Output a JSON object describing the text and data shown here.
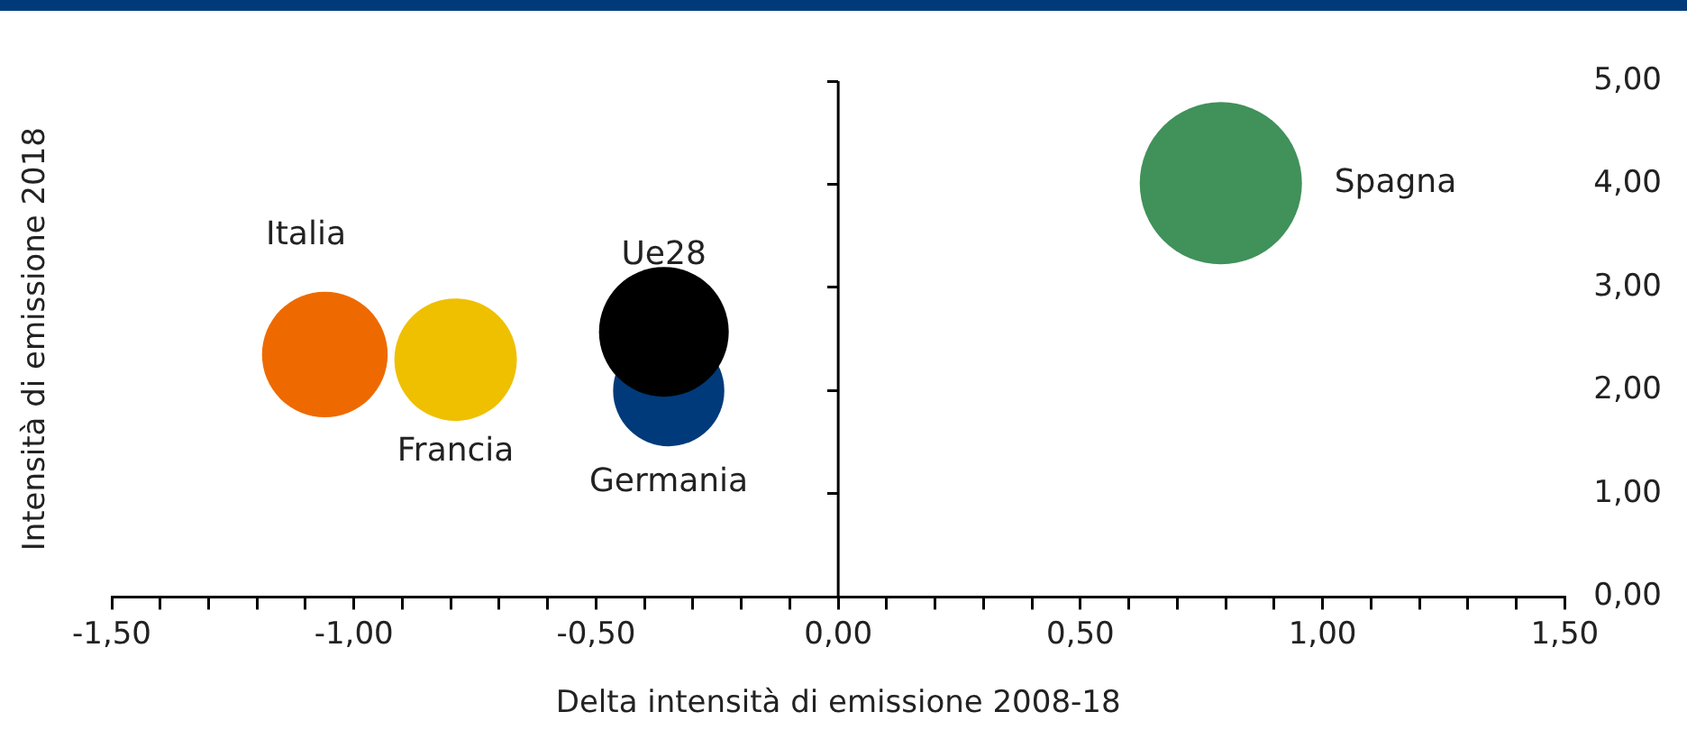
{
  "chart_data": {
    "type": "bubble",
    "xlabel": "Delta intensità di emissione 2008-18",
    "ylabel": "Intensità di emissione 2018",
    "series": [
      {
        "name": "Italia",
        "color": "#ee6a00",
        "x": [
          -1.06
        ],
        "values": [
          2.35
        ],
        "sizes": [
          0.6
        ]
      },
      {
        "name": "Francia",
        "color": "#eec000",
        "x": [
          -0.79
        ],
        "values": [
          2.3
        ],
        "sizes": [
          0.57
        ]
      },
      {
        "name": "Ue28",
        "color": "#000000",
        "x": [
          -0.36
        ],
        "values": [
          2.57
        ],
        "sizes": [
          0.64
        ]
      },
      {
        "name": "Germania",
        "color": "#003a7a",
        "x": [
          -0.35
        ],
        "values": [
          2.0
        ],
        "sizes": [
          0.47
        ]
      },
      {
        "name": "Spagna",
        "color": "#40915a",
        "x": [
          0.79
        ],
        "values": [
          4.01
        ],
        "sizes": [
          1
        ]
      }
    ],
    "xlim": [
      -1.5,
      1.5
    ],
    "xticks": [
      {
        "value": -1.5,
        "label": "-1,50"
      },
      {
        "value": -1.4,
        "label": null
      },
      {
        "value": -1.3,
        "label": null
      },
      {
        "value": -1.2,
        "label": null
      },
      {
        "value": -1.1,
        "label": null
      },
      {
        "value": -1,
        "label": "-1,00"
      },
      {
        "value": -0.9,
        "label": null
      },
      {
        "value": -0.8,
        "label": null
      },
      {
        "value": -0.7,
        "label": null
      },
      {
        "value": -0.6,
        "label": null
      },
      {
        "value": -0.5,
        "label": "-0,50"
      },
      {
        "value": -0.4,
        "label": null
      },
      {
        "value": -0.3,
        "label": null
      },
      {
        "value": -0.2,
        "label": null
      },
      {
        "value": -0.1,
        "label": null
      },
      {
        "value": 0,
        "label": "0,00"
      },
      {
        "value": 0.1,
        "label": null
      },
      {
        "value": 0.2,
        "label": null
      },
      {
        "value": 0.3,
        "label": null
      },
      {
        "value": 0.4,
        "label": null
      },
      {
        "value": 0.5,
        "label": "0,50"
      },
      {
        "value": 0.6,
        "label": null
      },
      {
        "value": 0.7,
        "label": null
      },
      {
        "value": 0.8,
        "label": null
      },
      {
        "value": 0.9,
        "label": null
      },
      {
        "value": 1,
        "label": "1,00"
      },
      {
        "value": 1.1,
        "label": null
      },
      {
        "value": 1.2,
        "label": null
      },
      {
        "value": 1.3,
        "label": null
      },
      {
        "value": 1.4,
        "label": null
      },
      {
        "value": 1.5,
        "label": "1,50"
      }
    ],
    "ylim": [
      0,
      5
    ],
    "yticks": [
      {
        "value": 0,
        "label": "0,00"
      },
      {
        "value": 1,
        "label": "1,00"
      },
      {
        "value": 2,
        "label": "2,00"
      },
      {
        "value": 3,
        "label": "3,00"
      },
      {
        "value": 4,
        "label": "4,00"
      },
      {
        "value": 5,
        "label": "5,00"
      }
    ],
    "ref_lines": [
      {
        "axis": "x",
        "value": 0,
        "color": "#000000"
      }
    ],
    "grid": false,
    "legend": false
  }
}
